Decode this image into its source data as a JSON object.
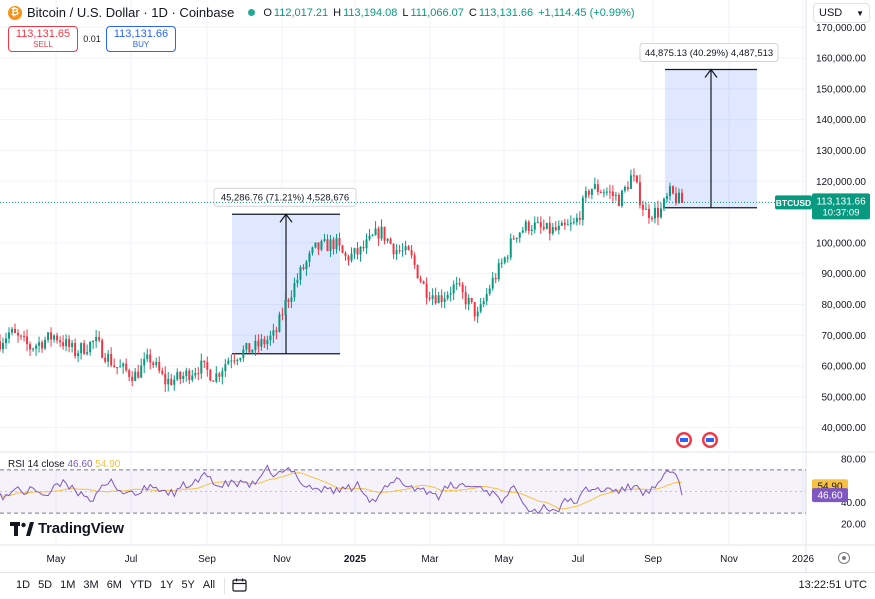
{
  "header": {
    "symbol_title": "Bitcoin / U.S. Dollar · 1D · Coinbase",
    "open_label": "O",
    "open": "112,017.21",
    "high_label": "H",
    "high": "113,194.08",
    "low_label": "L",
    "low": "111,066.07",
    "close_label": "C",
    "close": "113,131.66",
    "change": "+1,114.45 (+0.99%)",
    "sell_price": "113,131.65",
    "sell_label": "SELL",
    "spread": "0.01",
    "buy_price": "113,131.66",
    "buy_label": "BUY",
    "currency": "USD"
  },
  "price_axis": {
    "ticks": [
      "170,000.00",
      "160,000.00",
      "150,000.00",
      "140,000.00",
      "130,000.00",
      "120,000.00",
      "100,000.00",
      "90,000.00",
      "80,000.00",
      "70,000.00",
      "60,000.00",
      "50,000.00",
      "40,000.00"
    ],
    "last_symbol": "BTCUSD",
    "last_price": "113,131.66",
    "countdown": "10:37:09"
  },
  "rsi": {
    "label": "RSI 14 close",
    "value": "46.60",
    "ma_value": "54.90",
    "axis_ticks": [
      "80.00",
      "40.00",
      "20.00"
    ]
  },
  "time_axis": [
    "May",
    "Jul",
    "Sep",
    "Nov",
    "2025",
    "Mar",
    "May",
    "Jul",
    "Sep",
    "Nov",
    "2026"
  ],
  "annotations": {
    "measure_1": "45,286.76 (71.21%) 4,528,676",
    "measure_2": "44,875.13 (40.29%) 4,487,513"
  },
  "ranges": [
    "1D",
    "5D",
    "1M",
    "3M",
    "6M",
    "YTD",
    "1Y",
    "5Y",
    "All"
  ],
  "clock": "13:22:51 UTC",
  "brand": "TradingView",
  "colors": {
    "up": "#089981",
    "down": "#f23645",
    "rsi": "#7e57c2",
    "rsi_ma": "#f7c242",
    "measure": "#2962ff"
  },
  "chart_data": [
    {
      "type": "candlestick",
      "title": "Bitcoin / U.S. Dollar · 1D · Coinbase",
      "y_unit": "USD",
      "ylim": [
        35000,
        175000
      ],
      "x": [
        "2024-04",
        "2024-05",
        "2024-06",
        "2024-07",
        "2024-08",
        "2024-09",
        "2024-10",
        "2024-11",
        "2024-12",
        "2025-01",
        "2025-02",
        "2025-03",
        "2025-04",
        "2025-05",
        "2025-06",
        "2025-07",
        "2025-08",
        "2025-09"
      ],
      "trend_close": [
        64000,
        67500,
        68000,
        61000,
        57000,
        58000,
        63000,
        70000,
        96000,
        98000,
        102000,
        95000,
        82000,
        84000,
        103000,
        108000,
        117000,
        113000
      ],
      "last": 113131.66,
      "measures": [
        {
          "from": 64000,
          "to": 109300,
          "label": "45,286.76 (71.21%) 4,528,676"
        },
        {
          "from": 111400,
          "to": 156300,
          "label": "44,875.13 (40.29%) 4,487,513"
        }
      ]
    },
    {
      "type": "line",
      "title": "RSI 14 close",
      "ylim": [
        20,
        85
      ],
      "bands": [
        30,
        70
      ],
      "last_rsi": 46.6,
      "last_ma": 54.9
    }
  ]
}
